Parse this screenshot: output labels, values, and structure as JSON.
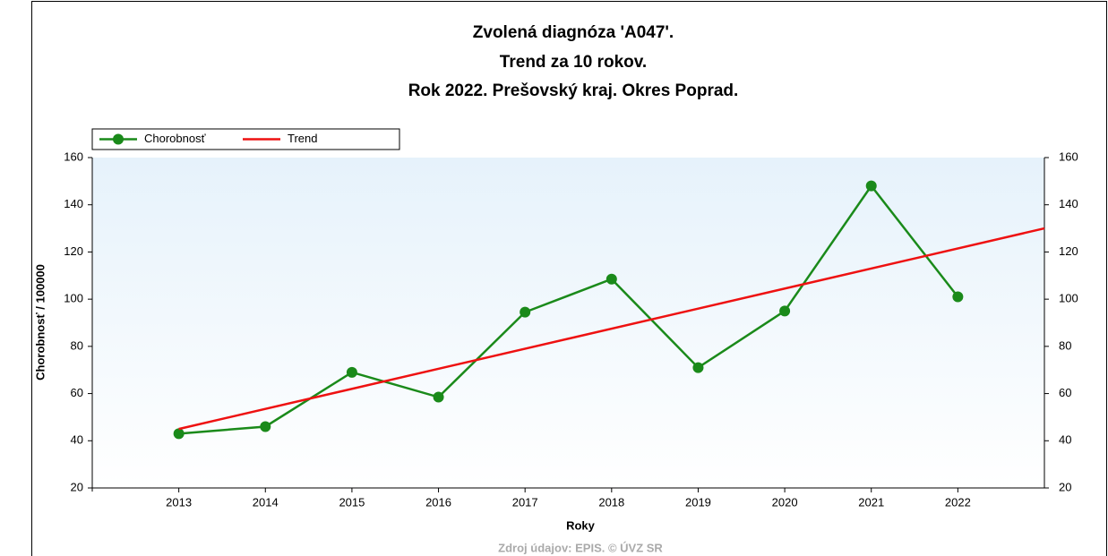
{
  "chart_data": {
    "type": "line",
    "title": [
      "Zvolená diagnóza 'A047'.",
      "Trend za 10 rokov.",
      "Rok 2022. Prešovský kraj. Okres Poprad."
    ],
    "x_label": "Roky",
    "y_label": "Chorobnosť / 100000",
    "source": "Zdroj údajov: EPIS. © ÚVZ SR",
    "xlim": [
      2012,
      2023
    ],
    "xticks": [
      2013,
      2014,
      2015,
      2016,
      2017,
      2018,
      2019,
      2020,
      2021,
      2022
    ],
    "ylim": [
      20,
      160
    ],
    "yticks": [
      20,
      40,
      60,
      80,
      100,
      120,
      140,
      160
    ],
    "legend": "top-left",
    "series": [
      {
        "name": "Chorobnosť",
        "color": "#1a8a1a",
        "markers": true,
        "x": [
          2013,
          2014,
          2015,
          2016,
          2017,
          2018,
          2019,
          2020,
          2021,
          2022
        ],
        "values": [
          43,
          46,
          69,
          58.5,
          94.5,
          108.5,
          71,
          95,
          148,
          101
        ]
      },
      {
        "name": "Trend",
        "color": "#ee1111",
        "markers": false,
        "x": [
          2013,
          2023
        ],
        "values": [
          45,
          130
        ]
      }
    ]
  }
}
